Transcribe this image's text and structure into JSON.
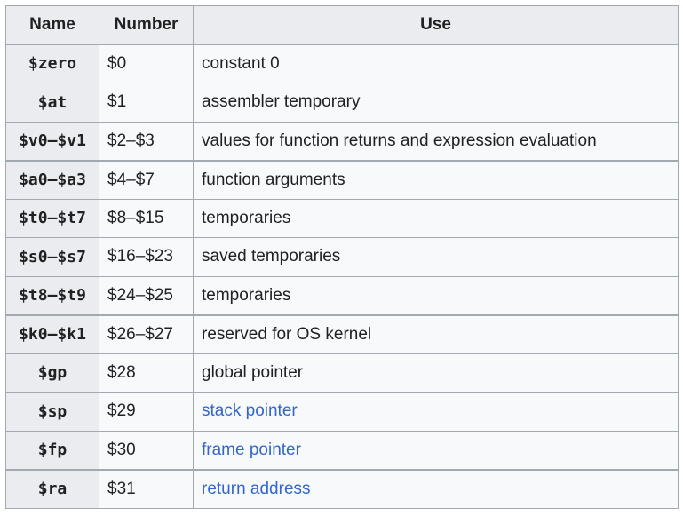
{
  "headers": {
    "name": "Name",
    "number": "Number",
    "use": "Use"
  },
  "link_color": "#3366cc",
  "rows": [
    {
      "name": "$zero",
      "number": "$0",
      "use": "constant 0",
      "link": false
    },
    {
      "name": "$at",
      "number": "$1",
      "use": "assembler temporary",
      "link": false
    },
    {
      "name": "$v0–$v1",
      "number": "$2–$3",
      "use": "values for function returns and expression evaluation",
      "link": false
    },
    {
      "name": "$a0–$a3",
      "number": "$4–$7",
      "use": "function arguments",
      "link": false
    },
    {
      "name": "$t0–$t7",
      "number": "$8–$15",
      "use": "temporaries",
      "link": false
    },
    {
      "name": "$s0–$s7",
      "number": "$16–$23",
      "use": "saved temporaries",
      "link": false
    },
    {
      "name": "$t8–$t9",
      "number": "$24–$25",
      "use": "temporaries",
      "link": false
    },
    {
      "name": "$k0–$k1",
      "number": "$26–$27",
      "use": "reserved for OS kernel",
      "link": false
    },
    {
      "name": "$gp",
      "number": "$28",
      "use": "global pointer",
      "link": false
    },
    {
      "name": "$sp",
      "number": "$29",
      "use": "stack pointer",
      "link": true
    },
    {
      "name": "$fp",
      "number": "$30",
      "use": "frame pointer",
      "link": true
    },
    {
      "name": "$ra",
      "number": "$31",
      "use": "return address",
      "link": true
    }
  ]
}
